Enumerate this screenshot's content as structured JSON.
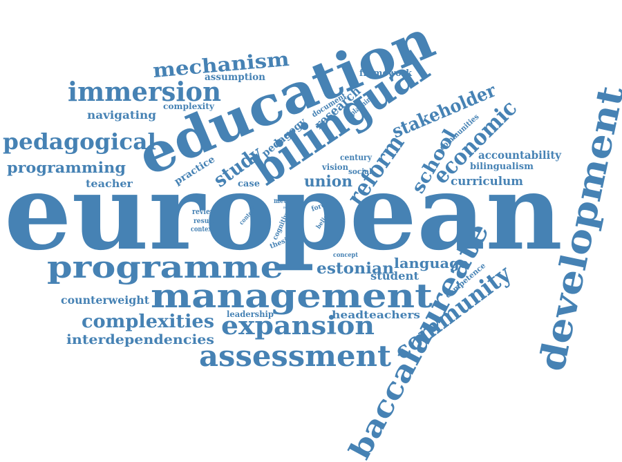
{
  "colors": {
    "word": "#4682b4",
    "background": "#ffffff"
  },
  "words": {
    "european": "european",
    "education": "education",
    "bilingual": "bilingual",
    "development": "development",
    "baccalaureate": "baccalaureate",
    "management": "management",
    "programme": "programme",
    "assessment": "assessment",
    "expansion": "expansion",
    "immersion": "immersion",
    "pedagogical": "pedagogical",
    "mechanism": "mechanism",
    "community": "community",
    "economic": "economic",
    "stakeholder": "stakeholder",
    "reform": "reform",
    "study": "study",
    "school": "school",
    "complexities": "complexities",
    "interdependencies": "interdependencies",
    "programming": "programming",
    "union": "union",
    "estonian": "estonian",
    "language": "language",
    "curriculum": "curriculum",
    "accountability": "accountability",
    "bilingualism": "bilingualism",
    "counterweight": "counterweight",
    "headteachers": "headteachers",
    "student": "student",
    "navigating": "navigating",
    "teacher": "teacher",
    "practice": "practice",
    "research": "research",
    "assumption": "assumption",
    "framework": "framework",
    "complexity": "complexity",
    "pedagogy": "pedagogy",
    "document": "document",
    "planning": "planning",
    "communities": "communities",
    "century": "century",
    "vision": "vision",
    "social": "social",
    "case": "case",
    "review": "review",
    "result": "result",
    "context": "context",
    "content": "content",
    "meta": "meta",
    "role": "role",
    "cognitive": "cognitive",
    "force": "force",
    "belief": "belief",
    "thesis": "thesis",
    "concept": "concept",
    "competence": "competence",
    "leadership": "leadership"
  }
}
